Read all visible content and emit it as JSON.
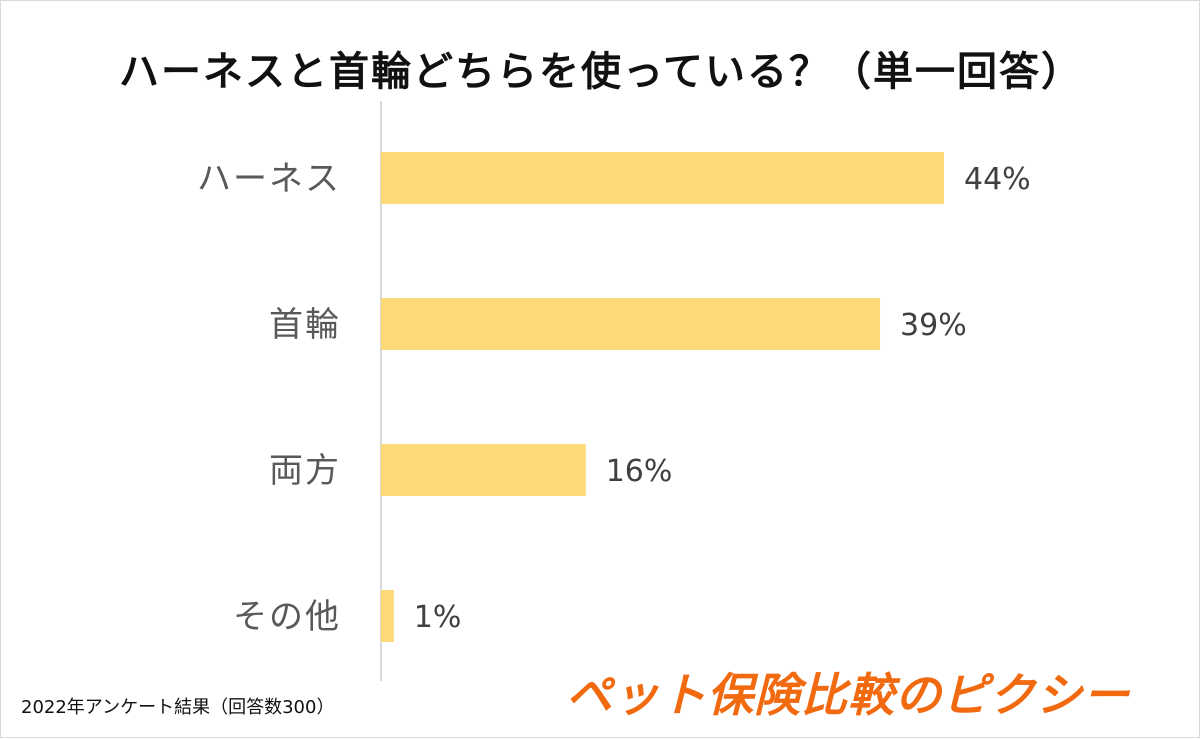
{
  "chart_data": {
    "type": "bar",
    "orientation": "horizontal",
    "title": "ハーネスと首輪どちらを使っている？（単一回答）",
    "categories": [
      "ハーネス",
      "首輪",
      "両方",
      "その他"
    ],
    "values": [
      44,
      39,
      16,
      1
    ],
    "value_labels": [
      "44%",
      "39%",
      "16%",
      "1%"
    ],
    "bar_color": "#fdd978",
    "axis_color": "#d9d9d9",
    "xlim": [
      0,
      100
    ],
    "grid": false,
    "legend": "none"
  },
  "footnote": "2022年アンケート結果（回答数300）",
  "brand": "ペット保険比較のピクシー",
  "colors": {
    "brand": "#f26a0f",
    "title": "#111111",
    "category_label": "#595959",
    "value_label": "#404040"
  }
}
